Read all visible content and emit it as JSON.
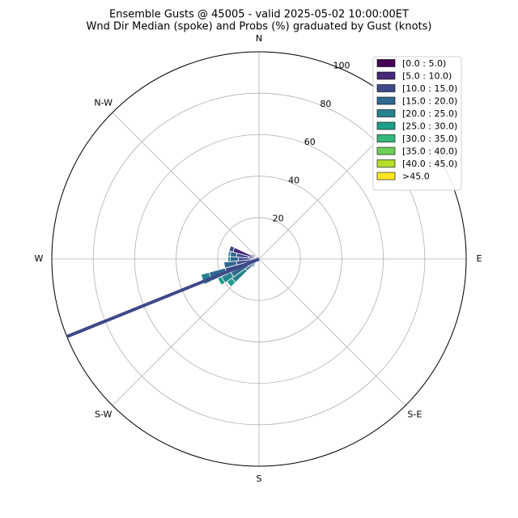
{
  "chart_data": {
    "type": "windrose",
    "title": "Ensemble Gusts @ 45005 - valid 2025-05-02 10:00:00ET",
    "subtitle": "Wnd Dir Median (spoke) and Probs (%) graduated by Gust (knots)",
    "x": [
      220,
      230,
      240,
      250,
      260,
      270,
      280,
      290,
      300
    ],
    "series": [
      {
        "name": "[0.0 : 5.0)",
        "color": "#440154",
        "values": [
          0,
          0,
          0,
          0,
          0,
          0,
          0,
          1,
          1
        ]
      },
      {
        "name": "[5.0 : 10.0)",
        "color": "#482878",
        "values": [
          0,
          0,
          2,
          3,
          3,
          4,
          5,
          12,
          3
        ]
      },
      {
        "name": "[10.0 : 15.0)",
        "color": "#3e4989",
        "values": [
          0,
          2,
          4,
          14,
          8,
          6,
          6,
          2,
          0
        ]
      },
      {
        "name": "[15.0 : 20.0)",
        "color": "#31688e",
        "values": [
          3,
          6,
          9,
          8,
          6,
          4,
          3,
          0,
          0
        ]
      },
      {
        "name": "[20.0 : 25.0)",
        "color": "#26828e",
        "values": [
          2,
          8,
          5,
          4,
          0,
          1,
          1,
          0,
          0
        ]
      },
      {
        "name": "[25.0 : 30.0)",
        "color": "#1f9e89",
        "values": [
          0,
          3,
          2,
          0,
          0,
          0,
          0,
          0,
          0
        ]
      },
      {
        "name": "[30.0 : 35.0)",
        "color": "#35b779",
        "values": [
          0,
          0,
          0,
          0,
          0,
          0,
          0,
          0,
          0
        ]
      },
      {
        "name": "[35.0 : 40.0)",
        "color": "#6ece58",
        "values": [
          0,
          0,
          0,
          0,
          0,
          0,
          0,
          0,
          0
        ]
      },
      {
        "name": "[40.0 : 45.0)",
        "color": "#b5de2b",
        "values": [
          0,
          0,
          0,
          0,
          0,
          0,
          0,
          0,
          0
        ]
      },
      {
        "name": ">45.0",
        "color": "#fde725",
        "values": [
          0,
          0,
          0,
          0,
          0,
          0,
          0,
          0,
          0
        ]
      }
    ],
    "sector_width": 10,
    "spoke": {
      "direction": 248,
      "color": "#3e4989"
    },
    "rlim": [
      0,
      100
    ],
    "rticks": [
      20,
      40,
      60,
      80,
      100
    ],
    "xticks": [
      {
        "value": 0,
        "label": "N"
      },
      {
        "value": 45,
        "label": "N-E"
      },
      {
        "value": 90,
        "label": "E"
      },
      {
        "value": 135,
        "label": "S-E"
      },
      {
        "value": 180,
        "label": "S"
      },
      {
        "value": 225,
        "label": "S-W"
      },
      {
        "value": 270,
        "label": "W"
      },
      {
        "value": 315,
        "label": "N-W"
      }
    ],
    "grid": true
  }
}
